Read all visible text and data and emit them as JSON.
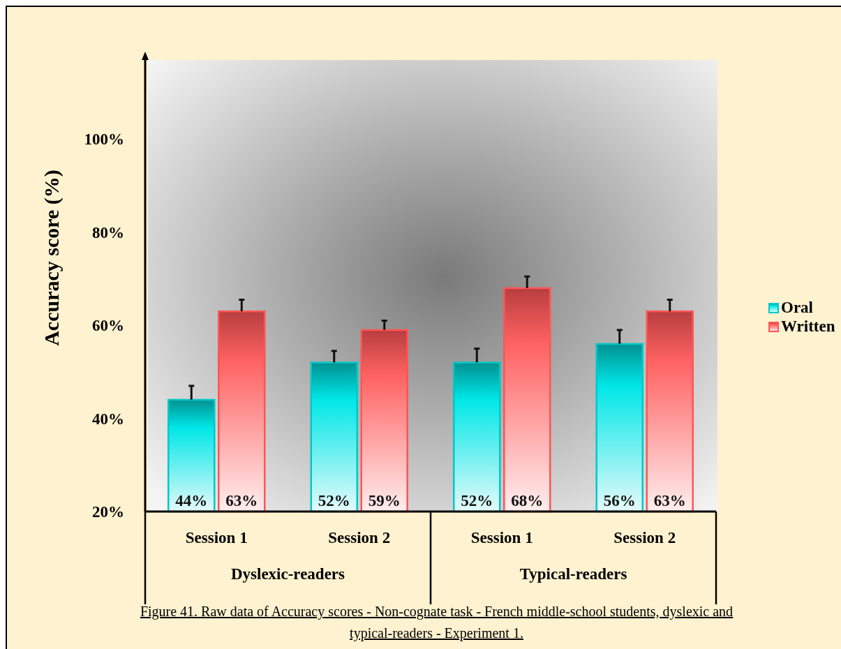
{
  "chart_data": {
    "type": "bar",
    "title": "Figure 41. Raw data of Accuracy scores - Non-cognate task - French middle-school students, dyslexic and typical-readers - Experiment 1.",
    "ylabel": "Accuracy score (%)",
    "categories": [
      "Session 1",
      "Session 2",
      "Session 1",
      "Session 2"
    ],
    "annotations": [
      "Dyslexic-readers",
      "Typical-readers"
    ],
    "series": [
      {
        "name": "Oral",
        "color": "#00c8c8",
        "values": [
          44,
          52,
          52,
          56
        ],
        "value_labels": [
          "44%",
          "52%",
          "52%",
          "56%"
        ],
        "errors": [
          [
            44,
            47
          ],
          [
            52,
            54.5
          ],
          [
            52,
            55
          ],
          [
            56,
            59
          ]
        ]
      },
      {
        "name": "Written",
        "color": "#ff5555",
        "values": [
          63,
          59,
          68,
          63
        ],
        "value_labels": [
          "63%",
          "59%",
          "68%",
          "63%"
        ],
        "errors": [
          [
            63,
            65.5
          ],
          [
            59,
            61
          ],
          [
            68,
            70.5
          ],
          [
            63,
            65.5
          ]
        ]
      }
    ],
    "ylim": [
      20,
      117
    ],
    "yticks": [
      {
        "value": 20,
        "label": "20%"
      },
      {
        "value": 40,
        "label": "40%"
      },
      {
        "value": 60,
        "label": "60%"
      },
      {
        "value": 80,
        "label": "80%"
      },
      {
        "value": 100,
        "label": "100%"
      }
    ],
    "legend": "right"
  }
}
